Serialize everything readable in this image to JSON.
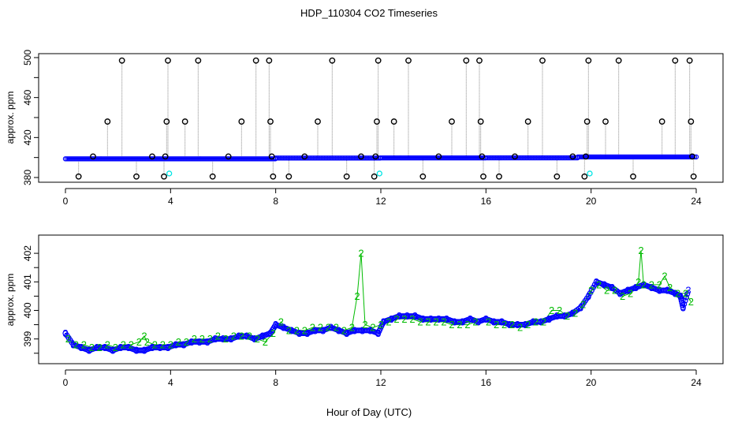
{
  "title": "HDP_110304  CO2 Timeseries",
  "xlabel": "Hour of Day (UTC)",
  "colors": {
    "spike": "#000000",
    "drop_line": "#888888",
    "series_a": "#0000ff",
    "series_b": "#00bb00",
    "low": "#00e5e5"
  },
  "chart_data": [
    {
      "type": "scatter",
      "ylabel": "approx. ppm",
      "xlim": [
        0,
        24
      ],
      "ylim": [
        380,
        500
      ],
      "xticks": [
        "0",
        "4",
        "8",
        "12",
        "16",
        "20",
        "24"
      ],
      "yticks": [
        "380",
        "420",
        "460",
        "500"
      ],
      "baseline_series": [
        {
          "hour_from": 0.0,
          "hour_to": 8.0,
          "value": 398.7
        },
        {
          "hour_from": 8.0,
          "hour_to": 12.0,
          "value": 399.2
        },
        {
          "hour_from": 12.0,
          "hour_to": 16.0,
          "value": 399.6
        },
        {
          "hour_from": 16.0,
          "hour_to": 19.5,
          "value": 399.5
        },
        {
          "hour_from": 19.5,
          "hour_to": 24.0,
          "value": 400.6
        }
      ],
      "spikes": [
        {
          "x": 0.5,
          "y": 381
        },
        {
          "x": 1.05,
          "y": 401
        },
        {
          "x": 1.6,
          "y": 436
        },
        {
          "x": 2.15,
          "y": 497
        },
        {
          "x": 2.7,
          "y": 381
        },
        {
          "x": 3.3,
          "y": 401
        },
        {
          "x": 3.75,
          "y": 381
        },
        {
          "x": 3.8,
          "y": 401
        },
        {
          "x": 3.85,
          "y": 436
        },
        {
          "x": 3.9,
          "y": 497
        },
        {
          "x": 4.55,
          "y": 436
        },
        {
          "x": 5.05,
          "y": 497
        },
        {
          "x": 5.6,
          "y": 381
        },
        {
          "x": 6.2,
          "y": 401
        },
        {
          "x": 6.7,
          "y": 436
        },
        {
          "x": 7.25,
          "y": 497
        },
        {
          "x": 7.75,
          "y": 497
        },
        {
          "x": 7.8,
          "y": 436
        },
        {
          "x": 7.85,
          "y": 401
        },
        {
          "x": 7.9,
          "y": 381
        },
        {
          "x": 8.5,
          "y": 381
        },
        {
          "x": 9.1,
          "y": 401
        },
        {
          "x": 9.6,
          "y": 436
        },
        {
          "x": 10.15,
          "y": 497
        },
        {
          "x": 10.7,
          "y": 381
        },
        {
          "x": 11.25,
          "y": 401
        },
        {
          "x": 11.75,
          "y": 381
        },
        {
          "x": 11.8,
          "y": 401
        },
        {
          "x": 11.85,
          "y": 436
        },
        {
          "x": 11.9,
          "y": 497
        },
        {
          "x": 12.5,
          "y": 436
        },
        {
          "x": 13.05,
          "y": 497
        },
        {
          "x": 13.6,
          "y": 381
        },
        {
          "x": 14.2,
          "y": 401
        },
        {
          "x": 14.7,
          "y": 436
        },
        {
          "x": 15.25,
          "y": 497
        },
        {
          "x": 15.75,
          "y": 497
        },
        {
          "x": 15.8,
          "y": 436
        },
        {
          "x": 15.85,
          "y": 401
        },
        {
          "x": 15.9,
          "y": 381
        },
        {
          "x": 16.5,
          "y": 381
        },
        {
          "x": 17.1,
          "y": 401
        },
        {
          "x": 17.6,
          "y": 436
        },
        {
          "x": 18.15,
          "y": 497
        },
        {
          "x": 18.7,
          "y": 381
        },
        {
          "x": 19.3,
          "y": 401
        },
        {
          "x": 19.75,
          "y": 381
        },
        {
          "x": 19.8,
          "y": 401
        },
        {
          "x": 19.85,
          "y": 436
        },
        {
          "x": 19.9,
          "y": 497
        },
        {
          "x": 20.55,
          "y": 436
        },
        {
          "x": 21.05,
          "y": 497
        },
        {
          "x": 21.6,
          "y": 381
        },
        {
          "x": 22.7,
          "y": 436
        },
        {
          "x": 23.2,
          "y": 497
        },
        {
          "x": 23.75,
          "y": 497
        },
        {
          "x": 23.8,
          "y": 436
        },
        {
          "x": 23.85,
          "y": 401
        },
        {
          "x": 23.9,
          "y": 381
        }
      ],
      "low_points": [
        {
          "x": 3.95,
          "y": 384
        },
        {
          "x": 11.95,
          "y": 384
        },
        {
          "x": 19.95,
          "y": 384
        }
      ]
    },
    {
      "type": "line",
      "ylabel": "approx. ppm",
      "xlim": [
        0,
        24
      ],
      "ylim": [
        398.3,
        402.5
      ],
      "xticks": [
        "0",
        "4",
        "8",
        "12",
        "16",
        "20",
        "24"
      ],
      "yticks": [
        "399",
        "400",
        "401",
        "402"
      ],
      "series": [
        {
          "marker": "3",
          "points": [
            [
              0.0,
              399.2
            ],
            [
              0.3,
              398.8
            ],
            [
              0.6,
              398.7
            ],
            [
              0.9,
              398.6
            ],
            [
              1.2,
              398.7
            ],
            [
              1.5,
              398.7
            ],
            [
              1.8,
              398.6
            ],
            [
              2.1,
              398.7
            ],
            [
              2.4,
              398.7
            ],
            [
              2.7,
              398.6
            ],
            [
              3.0,
              398.6
            ],
            [
              3.3,
              398.7
            ],
            [
              3.6,
              398.7
            ],
            [
              3.9,
              398.7
            ],
            [
              4.2,
              398.8
            ],
            [
              4.5,
              398.8
            ],
            [
              4.8,
              398.9
            ],
            [
              5.1,
              398.9
            ],
            [
              5.4,
              398.9
            ],
            [
              5.7,
              399.0
            ],
            [
              6.0,
              399.0
            ],
            [
              6.3,
              399.0
            ],
            [
              6.6,
              399.1
            ],
            [
              6.9,
              399.1
            ],
            [
              7.2,
              399.0
            ],
            [
              7.5,
              399.1
            ],
            [
              7.8,
              399.2
            ],
            [
              8.0,
              399.5
            ],
            [
              8.3,
              399.4
            ],
            [
              8.6,
              399.3
            ],
            [
              8.9,
              399.2
            ],
            [
              9.2,
              399.2
            ],
            [
              9.5,
              399.3
            ],
            [
              9.8,
              399.3
            ],
            [
              10.1,
              399.4
            ],
            [
              10.4,
              399.3
            ],
            [
              10.7,
              399.2
            ],
            [
              11.0,
              399.3
            ],
            [
              11.3,
              399.3
            ],
            [
              11.6,
              399.3
            ],
            [
              11.9,
              399.2
            ],
            [
              12.1,
              399.6
            ],
            [
              12.4,
              399.7
            ],
            [
              12.7,
              399.8
            ],
            [
              13.0,
              399.8
            ],
            [
              13.3,
              399.8
            ],
            [
              13.6,
              399.7
            ],
            [
              13.9,
              399.7
            ],
            [
              14.2,
              399.7
            ],
            [
              14.5,
              399.7
            ],
            [
              14.8,
              399.6
            ],
            [
              15.1,
              399.6
            ],
            [
              15.4,
              399.7
            ],
            [
              15.7,
              399.6
            ],
            [
              16.0,
              399.7
            ],
            [
              16.3,
              399.6
            ],
            [
              16.6,
              399.6
            ],
            [
              16.9,
              399.5
            ],
            [
              17.2,
              399.5
            ],
            [
              17.5,
              399.5
            ],
            [
              17.8,
              399.6
            ],
            [
              18.1,
              399.6
            ],
            [
              18.4,
              399.7
            ],
            [
              18.7,
              399.8
            ],
            [
              19.0,
              399.8
            ],
            [
              19.3,
              399.9
            ],
            [
              19.6,
              400.1
            ],
            [
              19.9,
              400.5
            ],
            [
              20.2,
              401.0
            ],
            [
              20.5,
              400.9
            ],
            [
              20.8,
              400.8
            ],
            [
              21.1,
              400.6
            ],
            [
              21.4,
              400.7
            ],
            [
              21.7,
              400.8
            ],
            [
              22.0,
              400.9
            ],
            [
              22.3,
              400.8
            ],
            [
              22.6,
              400.7
            ],
            [
              22.9,
              400.7
            ],
            [
              23.2,
              400.6
            ],
            [
              23.4,
              400.5
            ],
            [
              23.5,
              400.1
            ],
            [
              23.7,
              400.7
            ]
          ]
        },
        {
          "marker": "2",
          "points": [
            [
              0.1,
              399.0
            ],
            [
              0.4,
              398.8
            ],
            [
              0.7,
              398.8
            ],
            [
              1.0,
              398.7
            ],
            [
              1.3,
              398.7
            ],
            [
              1.6,
              398.8
            ],
            [
              1.9,
              398.7
            ],
            [
              2.2,
              398.8
            ],
            [
              2.5,
              398.8
            ],
            [
              2.8,
              398.9
            ],
            [
              3.0,
              399.1
            ],
            [
              3.1,
              398.9
            ],
            [
              3.4,
              398.8
            ],
            [
              3.7,
              398.8
            ],
            [
              4.0,
              398.8
            ],
            [
              4.3,
              398.9
            ],
            [
              4.6,
              398.9
            ],
            [
              4.9,
              399.0
            ],
            [
              5.2,
              399.0
            ],
            [
              5.5,
              399.0
            ],
            [
              5.8,
              399.1
            ],
            [
              6.1,
              399.0
            ],
            [
              6.4,
              399.1
            ],
            [
              6.7,
              399.1
            ],
            [
              7.0,
              399.1
            ],
            [
              7.3,
              399.0
            ],
            [
              7.6,
              398.9
            ],
            [
              7.9,
              399.2
            ],
            [
              8.2,
              399.6
            ],
            [
              8.5,
              399.3
            ],
            [
              8.8,
              399.3
            ],
            [
              9.1,
              399.3
            ],
            [
              9.4,
              399.4
            ],
            [
              9.7,
              399.4
            ],
            [
              10.0,
              399.4
            ],
            [
              10.3,
              399.4
            ],
            [
              10.6,
              399.3
            ],
            [
              10.9,
              399.4
            ],
            [
              11.1,
              400.5
            ],
            [
              11.25,
              402.0
            ],
            [
              11.4,
              399.5
            ],
            [
              11.7,
              399.4
            ],
            [
              12.0,
              399.5
            ],
            [
              12.3,
              399.6
            ],
            [
              12.6,
              399.7
            ],
            [
              12.9,
              399.7
            ],
            [
              13.2,
              399.7
            ],
            [
              13.5,
              399.6
            ],
            [
              13.8,
              399.6
            ],
            [
              14.1,
              399.6
            ],
            [
              14.4,
              399.6
            ],
            [
              14.7,
              399.5
            ],
            [
              15.0,
              399.5
            ],
            [
              15.3,
              399.5
            ],
            [
              15.6,
              399.6
            ],
            [
              16.1,
              399.6
            ],
            [
              16.4,
              399.5
            ],
            [
              16.7,
              399.5
            ],
            [
              17.0,
              399.5
            ],
            [
              17.3,
              399.4
            ],
            [
              17.6,
              399.5
            ],
            [
              17.9,
              399.6
            ],
            [
              18.2,
              399.6
            ],
            [
              18.5,
              400.0
            ],
            [
              18.8,
              400.0
            ],
            [
              19.1,
              399.8
            ],
            [
              19.4,
              399.9
            ],
            [
              19.7,
              400.2
            ],
            [
              20.0,
              400.7
            ],
            [
              20.3,
              400.9
            ],
            [
              20.6,
              400.7
            ],
            [
              20.9,
              400.7
            ],
            [
              21.2,
              400.5
            ],
            [
              21.5,
              400.6
            ],
            [
              21.8,
              401.0
            ],
            [
              21.9,
              402.1
            ],
            [
              22.0,
              400.9
            ],
            [
              22.3,
              400.9
            ],
            [
              22.6,
              400.9
            ],
            [
              22.8,
              401.2
            ],
            [
              23.0,
              400.8
            ],
            [
              23.3,
              400.6
            ],
            [
              23.6,
              400.6
            ],
            [
              23.8,
              400.3
            ]
          ]
        }
      ]
    }
  ]
}
